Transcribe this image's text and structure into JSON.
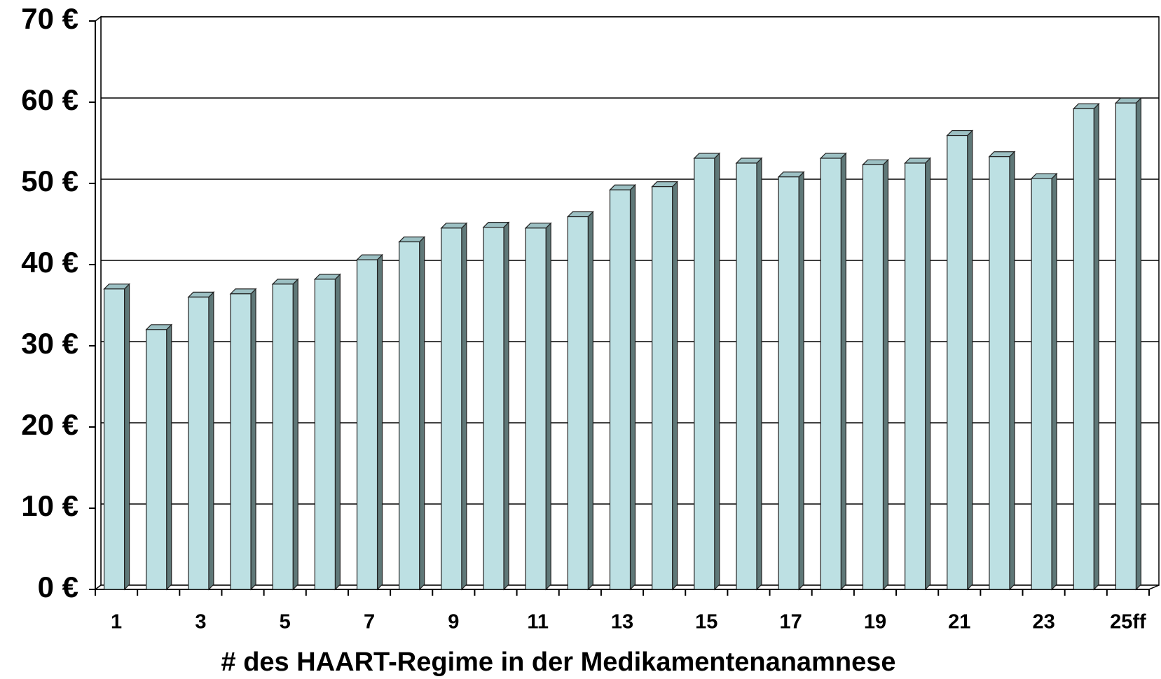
{
  "chart_data": {
    "type": "bar",
    "x_label": "# des HAART-Regime in der Medikamentenanamnese",
    "categories": [
      "1",
      null,
      "3",
      null,
      "5",
      null,
      "7",
      null,
      "9",
      null,
      "11",
      null,
      "13",
      null,
      "15",
      null,
      "17",
      null,
      "19",
      null,
      "21",
      null,
      "23",
      null,
      "25ff"
    ],
    "values": [
      37,
      32,
      36,
      36.4,
      37.6,
      38.2,
      40.6,
      42.8,
      44.5,
      44.6,
      44.5,
      45.9,
      49.2,
      49.6,
      53.1,
      52.5,
      50.8,
      53.1,
      52.3,
      52.5,
      55.9,
      53.3,
      50.6,
      59.2,
      59.9
    ],
    "color": "#bde0e3",
    "ylim": [
      0,
      70
    ],
    "yticks": [
      {
        "value": 0,
        "label": "0 €"
      },
      {
        "value": 10,
        "label": "10 €"
      },
      {
        "value": 20,
        "label": "20 €"
      },
      {
        "value": 30,
        "label": "30 €"
      },
      {
        "value": 40,
        "label": "40 €"
      },
      {
        "value": 50,
        "label": "50 €"
      },
      {
        "value": 60,
        "label": "60 €"
      },
      {
        "value": 70,
        "label": "70 €"
      }
    ],
    "grid": true
  }
}
